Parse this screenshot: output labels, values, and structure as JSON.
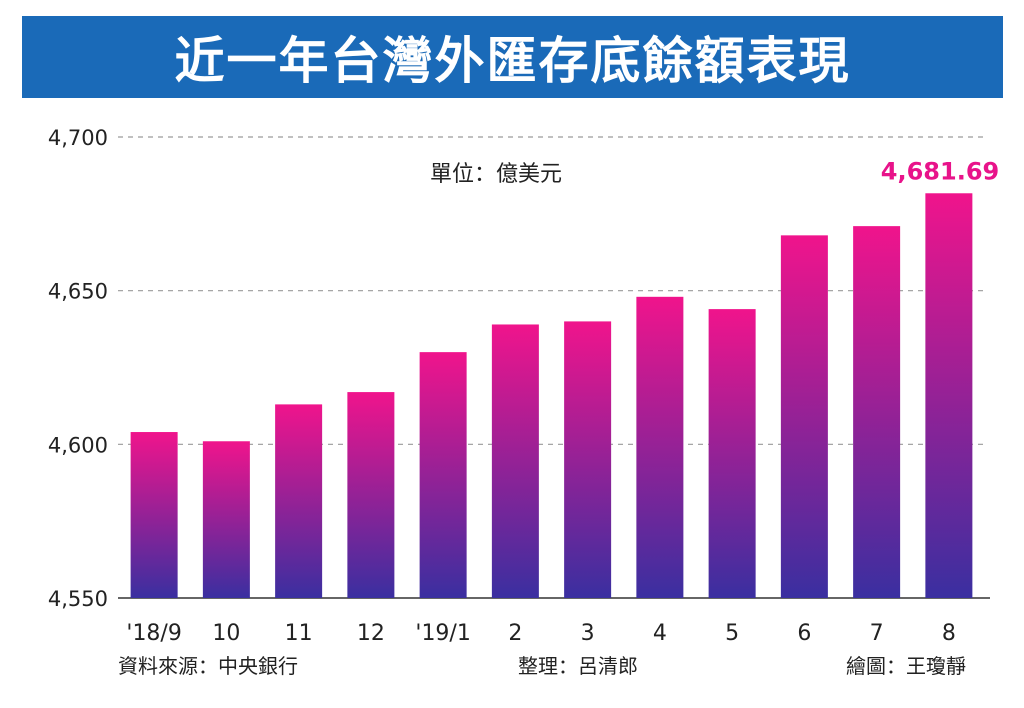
{
  "header": {
    "title": "近一年台灣外匯存底餘額表現"
  },
  "notes": {
    "unit": "單位：億美元",
    "source": "資料來源：中央銀行",
    "compiled_by": "整理：呂清郎",
    "illustrated_by": "繪圖：王瓊靜"
  },
  "colors": {
    "banner": "#1a6ab8",
    "bar_top": "#f0148c",
    "bar_bottom": "#3a2fa0",
    "highlight_label": "#e8138a"
  },
  "chart_data": {
    "type": "bar",
    "title": "近一年台灣外匯存底餘額表現",
    "xlabel": "",
    "ylabel": "",
    "categories": [
      "'18/9",
      "10",
      "11",
      "12",
      "'19/1",
      "2",
      "3",
      "4",
      "5",
      "6",
      "7",
      "8"
    ],
    "values": [
      4604,
      4601,
      4613,
      4617,
      4630,
      4639,
      4640,
      4648,
      4644,
      4668,
      4671,
      4681.69
    ],
    "ylim": [
      4550,
      4700
    ],
    "yticks": [
      4550,
      4600,
      4650,
      4700
    ],
    "ytick_labels": [
      "4,550",
      "4,600",
      "4,650",
      "4,700"
    ],
    "grid": "dashed horizontal",
    "data_labels": [
      {
        "index": 11,
        "text": "4,681.69"
      }
    ]
  }
}
